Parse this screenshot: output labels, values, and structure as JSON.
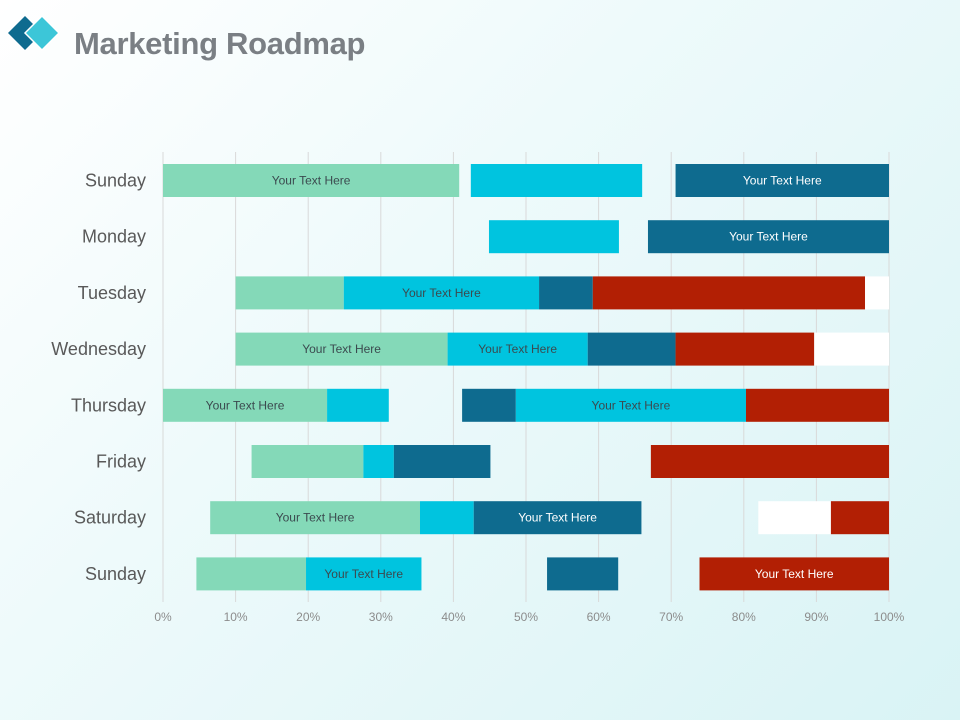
{
  "header": {
    "title": "Marketing Roadmap"
  },
  "colors": {
    "mint": "#84d9b8",
    "cyan": "#00c4df",
    "teal": "#0e6b8f",
    "red": "#b21f04",
    "white": "#ffffff",
    "logo_dark": "#0e6b8f",
    "logo_light": "#3cc6d8"
  },
  "chart_data": {
    "type": "bar",
    "orientation": "horizontal",
    "title": "",
    "xlabel": "",
    "ylabel": "",
    "xlim": [
      0,
      100
    ],
    "ticks": [
      "0%",
      "10%",
      "20%",
      "30%",
      "40%",
      "50%",
      "60%",
      "70%",
      "80%",
      "90%",
      "100%"
    ],
    "grid": true,
    "rows": [
      {
        "category": "Sunday",
        "segments": [
          {
            "start": 0,
            "end": 40.8,
            "color": "mint",
            "label": "Your Text Here"
          },
          {
            "start": 42.4,
            "end": 66.0,
            "color": "cyan",
            "label": ""
          },
          {
            "start": 70.6,
            "end": 100,
            "color": "teal",
            "label": "Your Text Here"
          }
        ]
      },
      {
        "category": "Monday",
        "segments": [
          {
            "start": 44.9,
            "end": 62.8,
            "color": "cyan",
            "label": ""
          },
          {
            "start": 66.8,
            "end": 100,
            "color": "teal",
            "label": "Your Text Here"
          }
        ]
      },
      {
        "category": "Tuesday",
        "segments": [
          {
            "start": 10,
            "end": 24.9,
            "color": "mint",
            "label": ""
          },
          {
            "start": 24.9,
            "end": 51.8,
            "color": "cyan",
            "label": "Your Text Here"
          },
          {
            "start": 51.8,
            "end": 59.2,
            "color": "teal",
            "label": ""
          },
          {
            "start": 59.2,
            "end": 96.7,
            "color": "red",
            "label": ""
          },
          {
            "start": 96.7,
            "end": 100,
            "color": "white",
            "label": ""
          }
        ]
      },
      {
        "category": "Wednesday",
        "segments": [
          {
            "start": 10,
            "end": 39.2,
            "color": "mint",
            "label": "Your Text Here"
          },
          {
            "start": 39.2,
            "end": 58.5,
            "color": "cyan",
            "label": "Your Text Here"
          },
          {
            "start": 58.5,
            "end": 70.6,
            "color": "teal",
            "label": ""
          },
          {
            "start": 70.6,
            "end": 89.7,
            "color": "red",
            "label": ""
          },
          {
            "start": 89.7,
            "end": 100,
            "color": "white",
            "label": ""
          }
        ]
      },
      {
        "category": "Thursday",
        "segments": [
          {
            "start": 0,
            "end": 22.6,
            "color": "mint",
            "label": "Your Text Here"
          },
          {
            "start": 22.6,
            "end": 31.1,
            "color": "cyan",
            "label": ""
          },
          {
            "start": 41.2,
            "end": 48.6,
            "color": "teal",
            "label": ""
          },
          {
            "start": 48.6,
            "end": 80.3,
            "color": "cyan",
            "label": "Your Text Here"
          },
          {
            "start": 80.3,
            "end": 100,
            "color": "red",
            "label": ""
          }
        ]
      },
      {
        "category": "Friday",
        "segments": [
          {
            "start": 12.2,
            "end": 27.6,
            "color": "mint",
            "label": ""
          },
          {
            "start": 27.6,
            "end": 31.8,
            "color": "cyan",
            "label": ""
          },
          {
            "start": 31.8,
            "end": 45.1,
            "color": "teal",
            "label": ""
          },
          {
            "start": 67.2,
            "end": 100,
            "color": "red",
            "label": ""
          }
        ]
      },
      {
        "category": "Saturday",
        "segments": [
          {
            "start": 6.5,
            "end": 35.4,
            "color": "mint",
            "label": "Your Text Here"
          },
          {
            "start": 35.4,
            "end": 42.8,
            "color": "cyan",
            "label": ""
          },
          {
            "start": 42.8,
            "end": 65.9,
            "color": "teal",
            "label": "Your Text Here"
          },
          {
            "start": 82.0,
            "end": 92.0,
            "color": "white",
            "label": ""
          },
          {
            "start": 92.0,
            "end": 100,
            "color": "red",
            "label": ""
          }
        ]
      },
      {
        "category": "Sunday",
        "segments": [
          {
            "start": 4.6,
            "end": 19.7,
            "color": "mint",
            "label": ""
          },
          {
            "start": 19.7,
            "end": 35.6,
            "color": "cyan",
            "label": "Your Text Here"
          },
          {
            "start": 52.9,
            "end": 62.7,
            "color": "teal",
            "label": ""
          },
          {
            "start": 73.9,
            "end": 100,
            "color": "red",
            "label": "Your Text Here"
          }
        ]
      }
    ]
  }
}
